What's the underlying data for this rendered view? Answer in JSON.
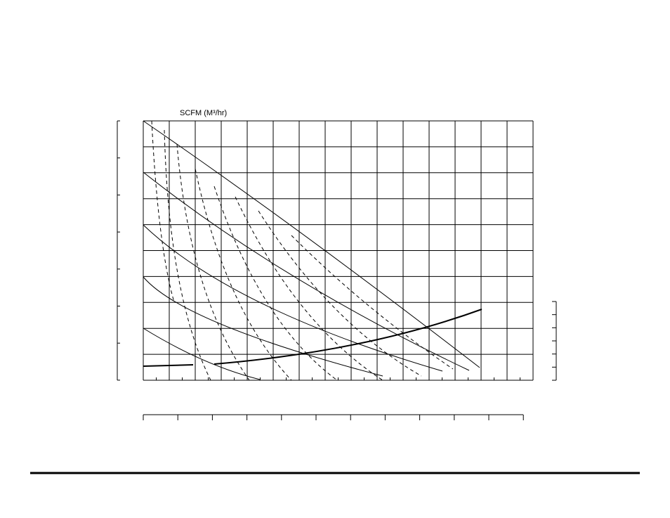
{
  "axis_label": "SCFM (M³/hr)"
}
